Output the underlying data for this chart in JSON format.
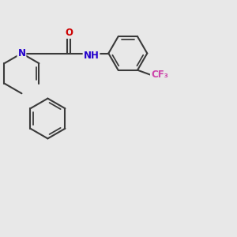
{
  "background_color": "#e8e8e8",
  "bond_color": "#3a3a3a",
  "bond_width": 1.5,
  "N_color": "#2200cc",
  "O_color": "#cc0000",
  "F_color": "#cc44aa",
  "figsize": [
    3.0,
    3.0
  ],
  "dpi": 100,
  "xlim": [
    0,
    10
  ],
  "ylim": [
    1.5,
    8.5
  ]
}
